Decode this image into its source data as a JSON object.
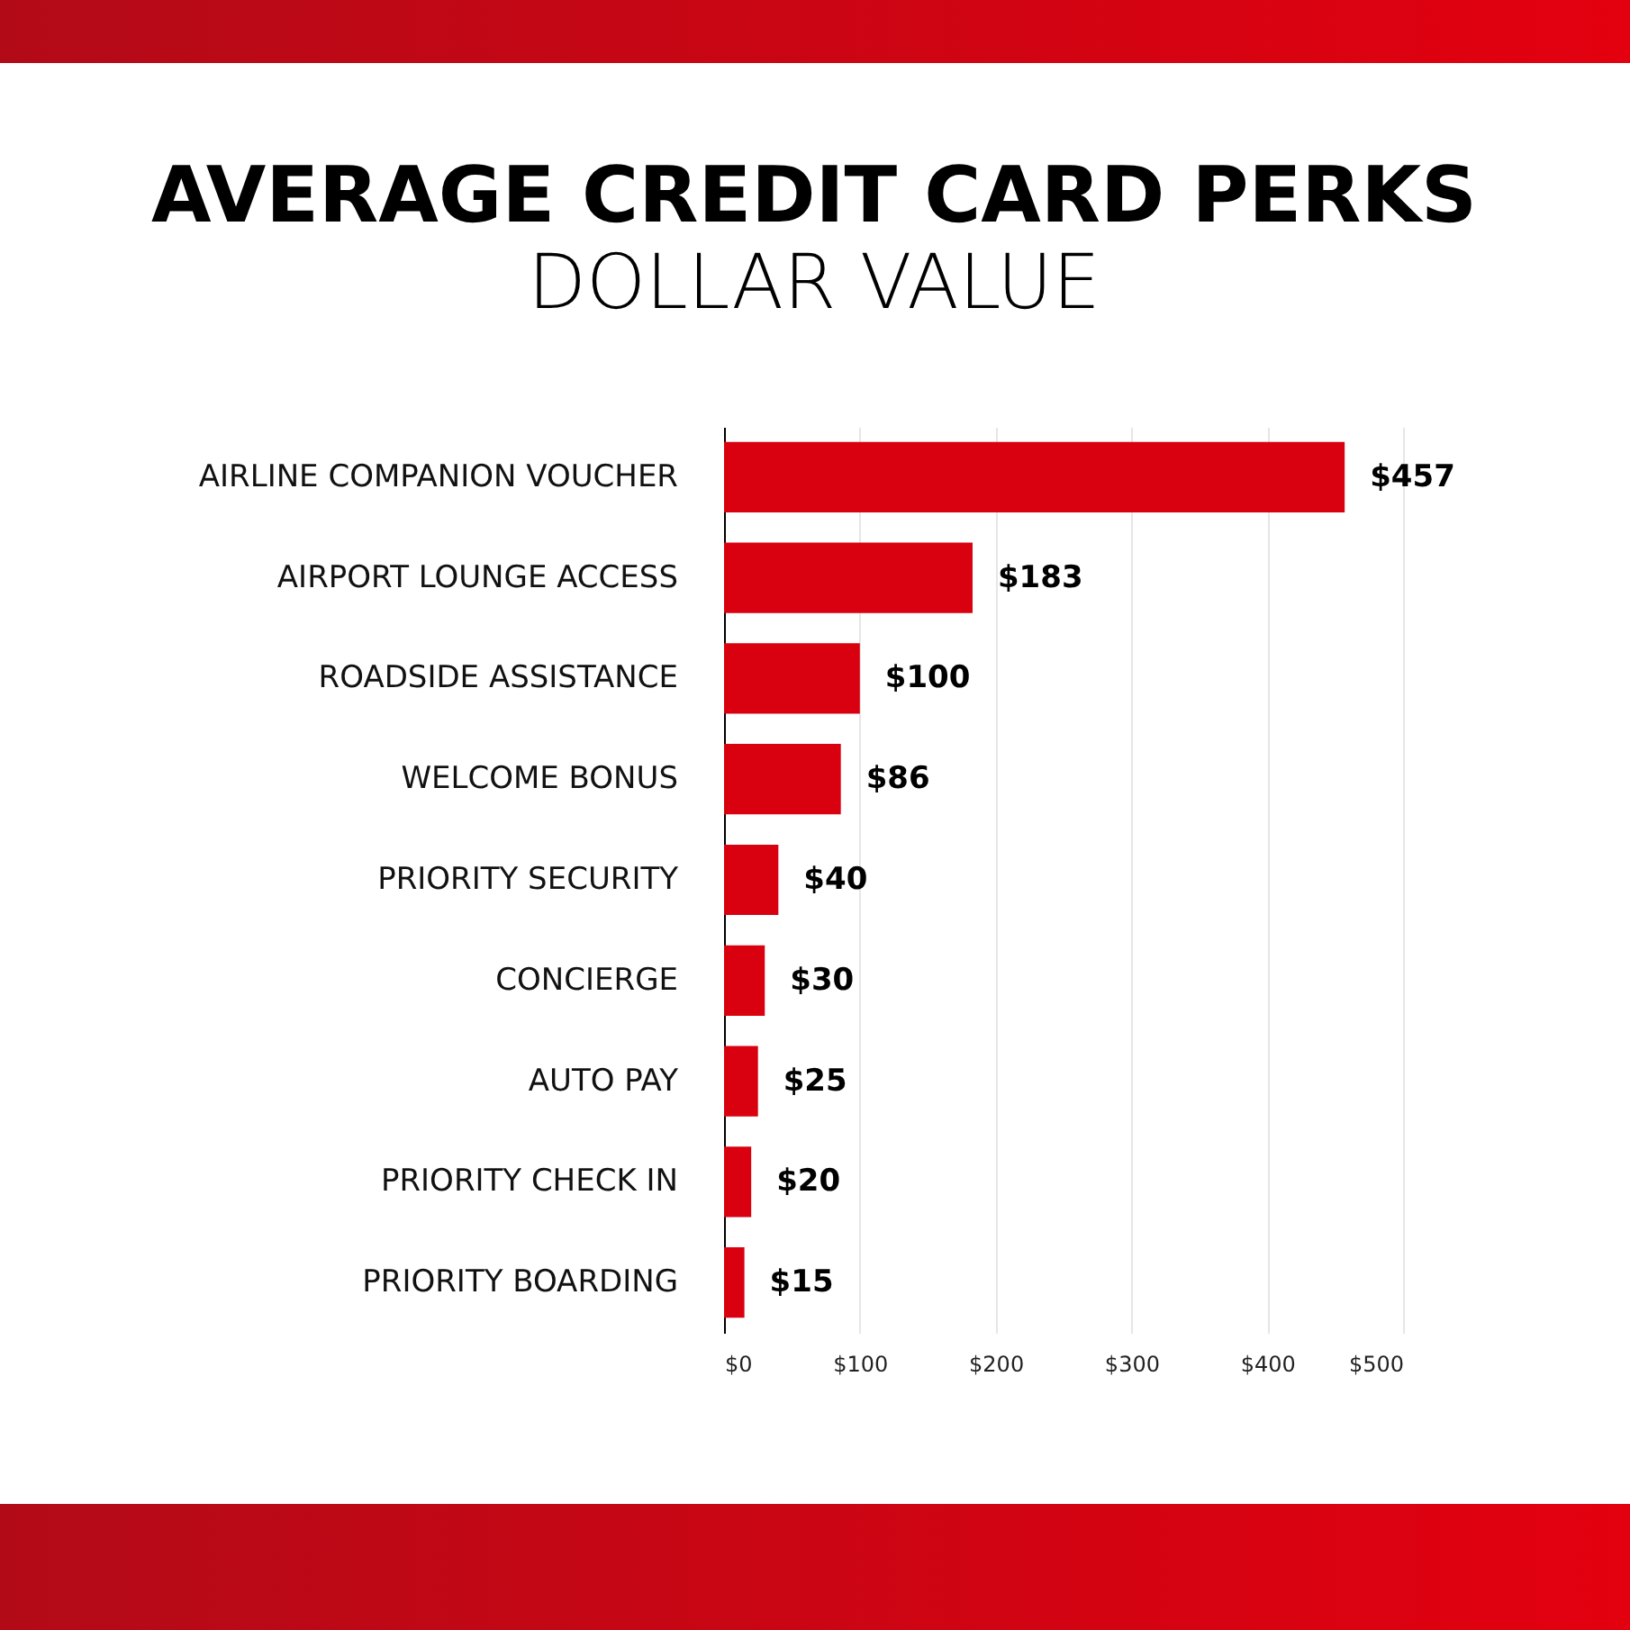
{
  "chart_data": {
    "type": "bar",
    "orientation": "horizontal",
    "title": "AVERAGE CREDIT CARD PERKS",
    "subtitle": "DOLLAR VALUE",
    "categories": [
      "AIRLINE COMPANION VOUCHER",
      "AIRPORT LOUNGE ACCESS",
      "ROADSIDE ASSISTANCE",
      "WELCOME BONUS",
      "PRIORITY SECURITY",
      "CONCIERGE",
      "AUTO PAY",
      "PRIORITY CHECK IN",
      "PRIORITY BOARDING"
    ],
    "values": [
      457,
      183,
      100,
      86,
      40,
      30,
      25,
      20,
      15
    ],
    "value_labels": [
      "$457",
      "$183",
      "$100",
      "$86",
      "$40",
      "$30",
      "$25",
      "$20",
      "$15"
    ],
    "color": "#d9000f",
    "xlim": [
      0,
      500
    ],
    "xticks": [
      {
        "value": 0,
        "label": "$0"
      },
      {
        "value": 100,
        "label": "$100"
      },
      {
        "value": 200,
        "label": "$200"
      },
      {
        "value": 300,
        "label": "$300"
      },
      {
        "value": 400,
        "label": "$400"
      },
      {
        "value": 500,
        "label": "$500"
      }
    ],
    "grid": "x"
  }
}
